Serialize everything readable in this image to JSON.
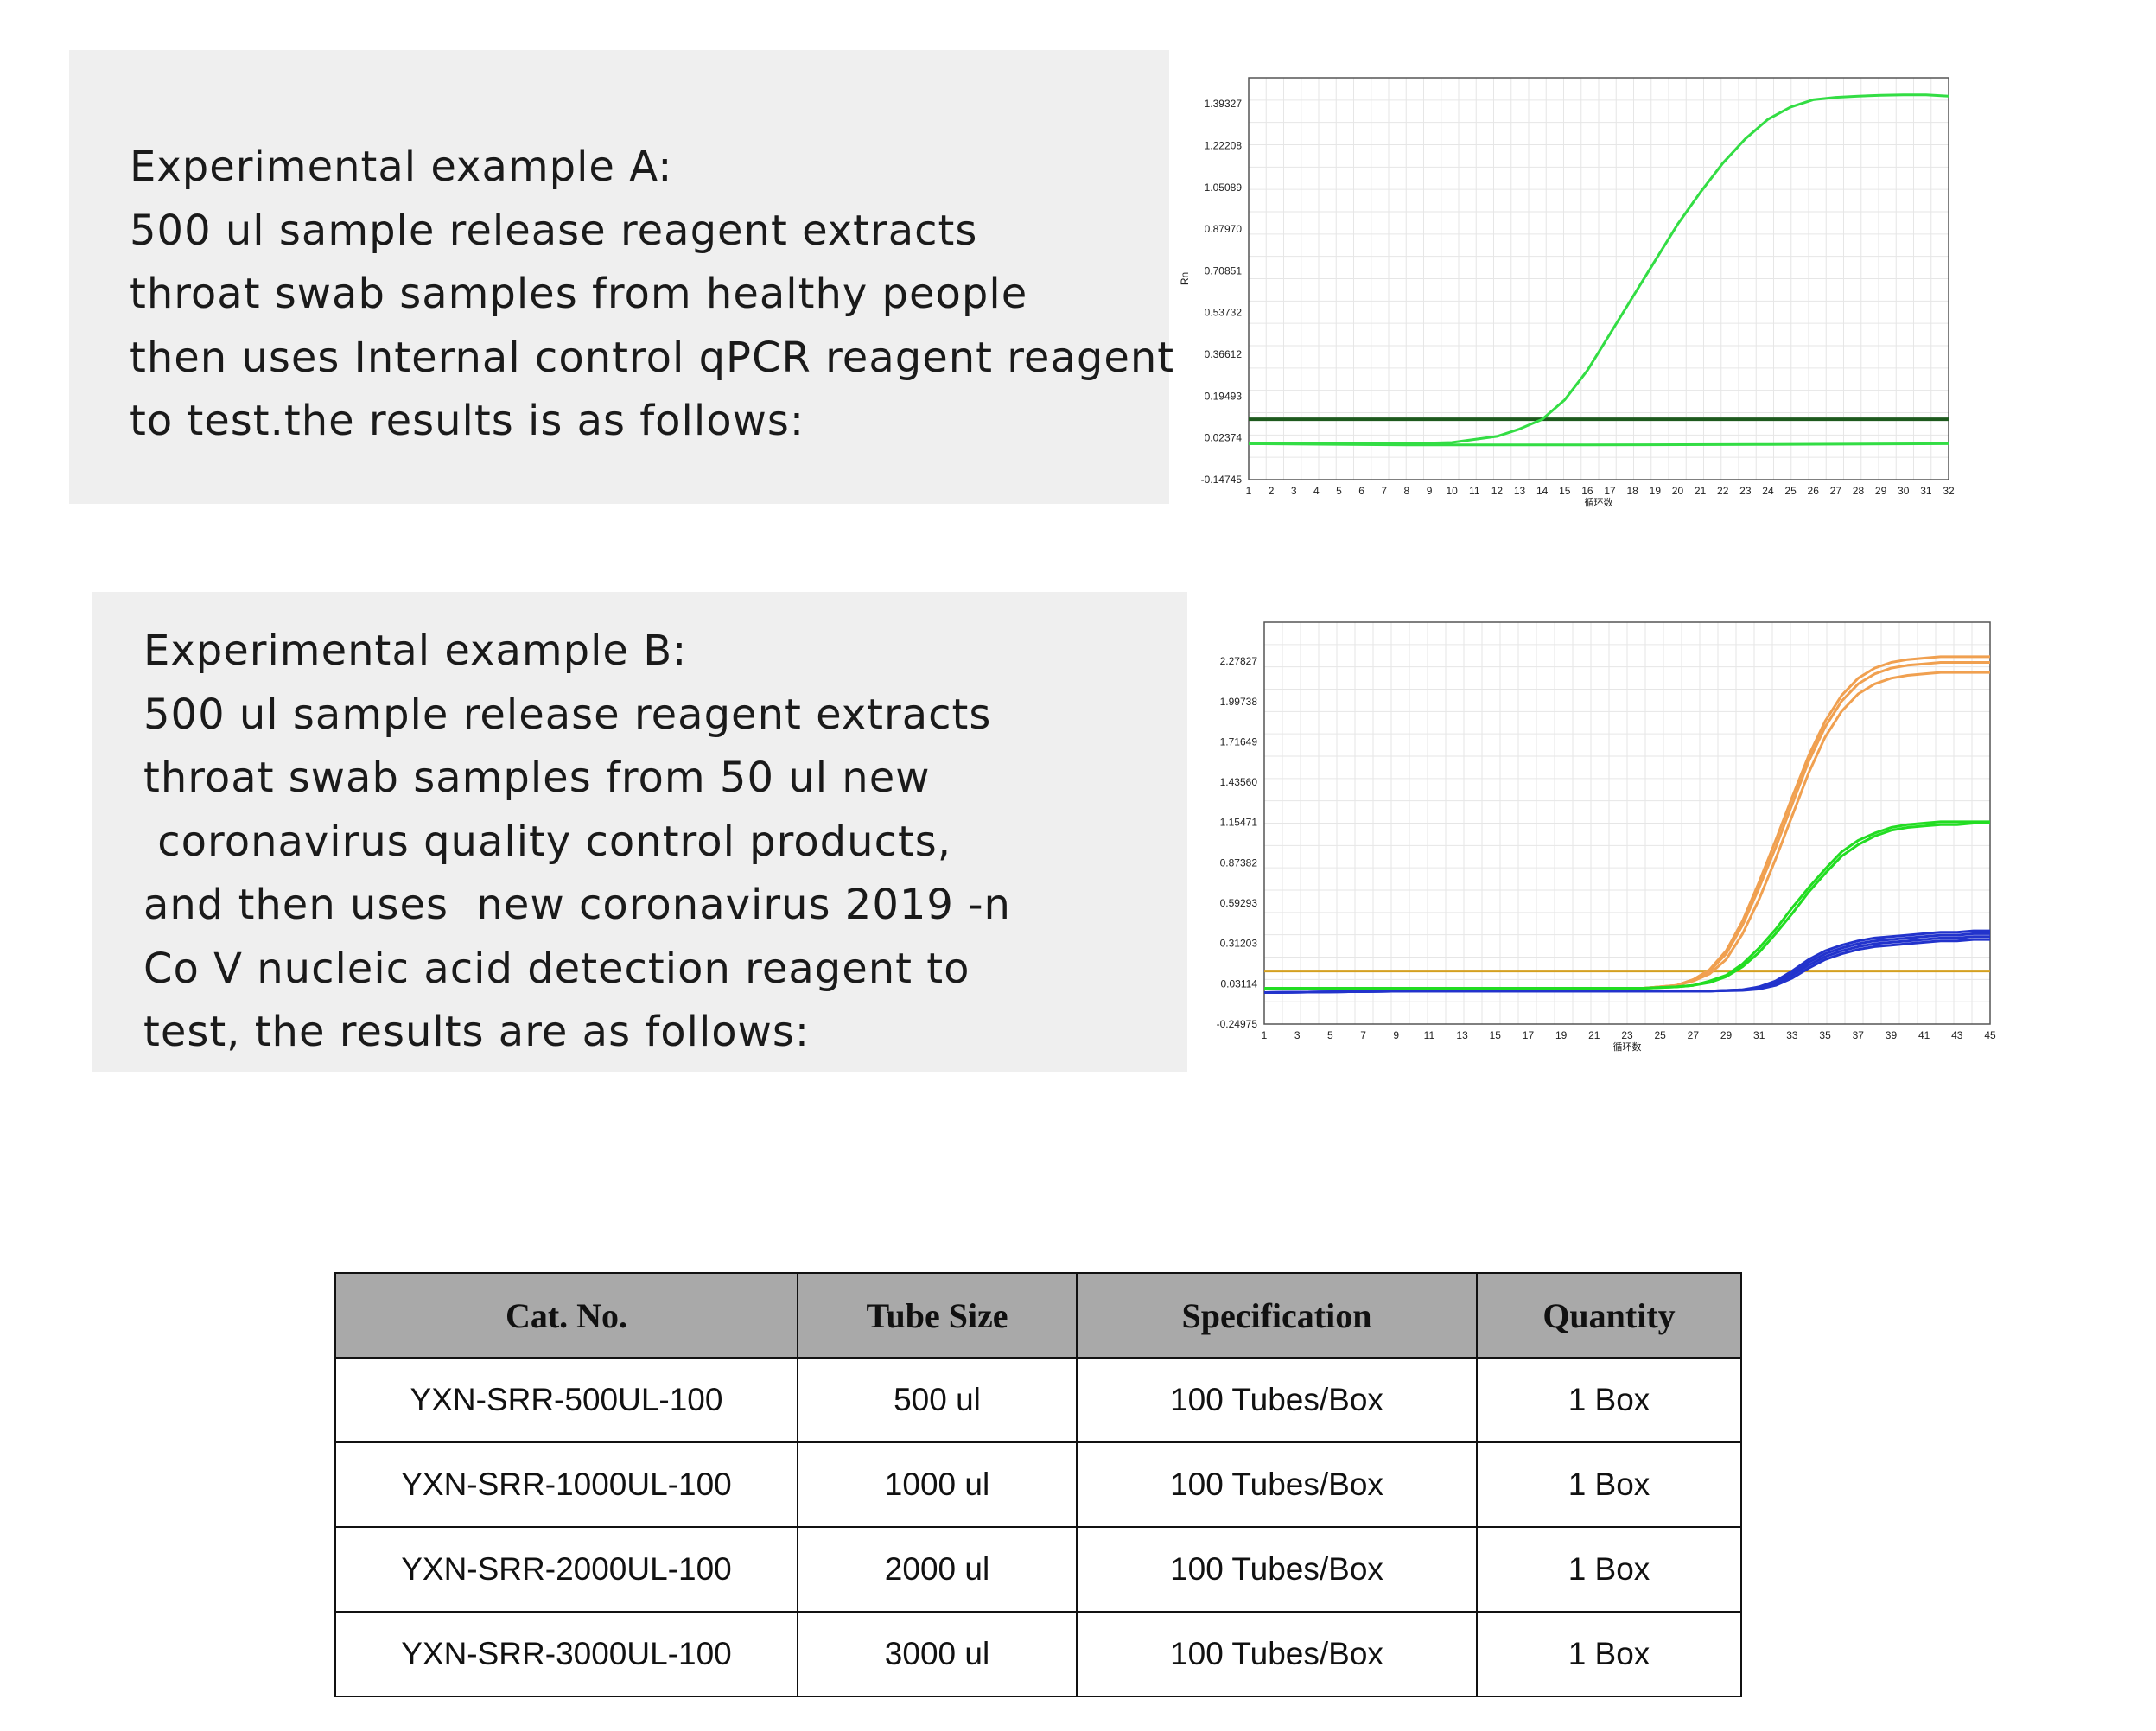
{
  "example_a": {
    "lines": [
      "Experimental example A:",
      "500 ul sample release reagent extracts",
      "throat swab samples from healthy people",
      "then uses Internal control qPCR reagent reagent",
      "to test.the results is as follows:"
    ]
  },
  "example_b": {
    "lines": [
      "Experimental example B:",
      "500 ul sample release reagent extracts",
      "throat swab samples from 50 ul new",
      " coronavirus quality control products,",
      "and then uses  new coronavirus 2019 -n",
      "Co V nucleic acid detection reagent to",
      "test, the results are as follows:"
    ]
  },
  "chart_data": [
    {
      "type": "line",
      "title": "",
      "ylabel": "Rn",
      "xlabel": "循环数",
      "y_ticks": [
        "1.39327",
        "1.22208",
        "1.05089",
        "0.87970",
        "0.70851",
        "0.53732",
        "0.36612",
        "0.19493",
        "0.02374",
        "-0.14745"
      ],
      "x_ticks": [
        "1",
        "2",
        "3",
        "4",
        "5",
        "6",
        "7",
        "8",
        "9",
        "10",
        "11",
        "12",
        "13",
        "14",
        "15",
        "16",
        "17",
        "18",
        "19",
        "20",
        "21",
        "22",
        "23",
        "24",
        "25",
        "26",
        "27",
        "28",
        "29",
        "30",
        "31",
        "32"
      ],
      "xlim": [
        1,
        32
      ],
      "ylim": [
        -0.14745,
        1.5
      ],
      "grid": true,
      "threshold": 0.1,
      "series": [
        {
          "color": "#33dd44",
          "x": [
            1,
            4,
            8,
            10,
            12,
            13,
            14,
            15,
            16,
            17,
            18,
            19,
            20,
            21,
            22,
            23,
            24,
            25,
            26,
            27,
            28,
            29,
            30,
            31,
            32
          ],
          "y": [
            0.0,
            0.0,
            0.0,
            0.005,
            0.03,
            0.06,
            0.1,
            0.18,
            0.3,
            0.45,
            0.6,
            0.75,
            0.9,
            1.03,
            1.15,
            1.25,
            1.33,
            1.38,
            1.41,
            1.42,
            1.425,
            1.428,
            1.43,
            1.43,
            1.425
          ]
        },
        {
          "color": "#33dd44",
          "x": [
            1,
            8,
            16,
            24,
            32
          ],
          "y": [
            0.0,
            -0.005,
            -0.005,
            -0.003,
            0.0
          ]
        }
      ]
    },
    {
      "type": "line",
      "title": "",
      "ylabel": "",
      "xlabel": "循环数",
      "y_ticks": [
        "2.27827",
        "1.99738",
        "1.71649",
        "1.43560",
        "1.15471",
        "0.87382",
        "0.59293",
        "0.31203",
        "0.03114",
        "-0.24975"
      ],
      "x_ticks": [
        "1",
        "3",
        "5",
        "7",
        "9",
        "11",
        "13",
        "15",
        "17",
        "19",
        "21",
        "23",
        "25",
        "27",
        "29",
        "31",
        "33",
        "35",
        "37",
        "39",
        "41",
        "43",
        "45"
      ],
      "xlim": [
        1,
        45
      ],
      "ylim": [
        -0.24975,
        2.55
      ],
      "grid": true,
      "threshold": 0.12,
      "series": [
        {
          "color": "#f0a050",
          "x": [
            1,
            10,
            20,
            24,
            26,
            27,
            28,
            29,
            30,
            31,
            32,
            33,
            34,
            35,
            36,
            37,
            38,
            39,
            40,
            41,
            42,
            43,
            44,
            45
          ],
          "y": [
            0.0,
            0.0,
            0.0,
            0.0,
            0.02,
            0.05,
            0.1,
            0.2,
            0.38,
            0.62,
            0.9,
            1.2,
            1.5,
            1.75,
            1.93,
            2.05,
            2.12,
            2.16,
            2.18,
            2.19,
            2.2,
            2.2,
            2.2,
            2.2
          ]
        },
        {
          "color": "#f0a050",
          "x": [
            1,
            10,
            20,
            24,
            26,
            27,
            28,
            29,
            30,
            31,
            32,
            33,
            34,
            35,
            36,
            37,
            38,
            39,
            40,
            41,
            42,
            43,
            44,
            45
          ],
          "y": [
            0.0,
            0.0,
            0.0,
            0.0,
            0.02,
            0.06,
            0.12,
            0.24,
            0.44,
            0.7,
            0.98,
            1.28,
            1.58,
            1.82,
            2.0,
            2.12,
            2.19,
            2.23,
            2.25,
            2.26,
            2.27,
            2.27,
            2.27,
            2.27
          ]
        },
        {
          "color": "#f0a050",
          "x": [
            1,
            10,
            20,
            24,
            26,
            27,
            28,
            29,
            30,
            31,
            32,
            33,
            34,
            35,
            36,
            37,
            38,
            39,
            40,
            41,
            42,
            43,
            44,
            45
          ],
          "y": [
            0.0,
            0.0,
            0.0,
            0.0,
            0.02,
            0.06,
            0.13,
            0.26,
            0.47,
            0.74,
            1.03,
            1.33,
            1.62,
            1.86,
            2.04,
            2.16,
            2.23,
            2.27,
            2.29,
            2.3,
            2.31,
            2.31,
            2.31,
            2.31
          ]
        },
        {
          "color": "#22dd22",
          "x": [
            1,
            10,
            20,
            24,
            26,
            27,
            28,
            29,
            30,
            31,
            32,
            33,
            34,
            35,
            36,
            37,
            38,
            39,
            40,
            41,
            42,
            43,
            44,
            45
          ],
          "y": [
            0.0,
            0.0,
            0.0,
            0.0,
            0.01,
            0.02,
            0.04,
            0.08,
            0.15,
            0.25,
            0.38,
            0.52,
            0.67,
            0.8,
            0.92,
            1.0,
            1.06,
            1.1,
            1.12,
            1.13,
            1.14,
            1.14,
            1.15,
            1.15
          ]
        },
        {
          "color": "#22dd22",
          "x": [
            1,
            10,
            20,
            24,
            26,
            27,
            28,
            29,
            30,
            31,
            32,
            33,
            34,
            35,
            36,
            37,
            38,
            39,
            40,
            41,
            42,
            43,
            44,
            45
          ],
          "y": [
            0.0,
            0.0,
            0.0,
            0.0,
            0.01,
            0.02,
            0.05,
            0.09,
            0.17,
            0.28,
            0.41,
            0.56,
            0.7,
            0.83,
            0.95,
            1.03,
            1.08,
            1.12,
            1.14,
            1.15,
            1.16,
            1.16,
            1.16,
            1.16
          ]
        },
        {
          "color": "#2233cc",
          "x": [
            1,
            10,
            20,
            28,
            30,
            31,
            32,
            33,
            34,
            35,
            36,
            37,
            38,
            39,
            40,
            41,
            42,
            43,
            44,
            45
          ],
          "y": [
            -0.03,
            -0.02,
            -0.02,
            -0.02,
            -0.015,
            -0.005,
            0.02,
            0.07,
            0.14,
            0.2,
            0.24,
            0.27,
            0.29,
            0.3,
            0.31,
            0.32,
            0.33,
            0.33,
            0.34,
            0.34
          ]
        },
        {
          "color": "#2233cc",
          "x": [
            1,
            10,
            20,
            28,
            30,
            31,
            32,
            33,
            34,
            35,
            36,
            37,
            38,
            39,
            40,
            41,
            42,
            43,
            44,
            45
          ],
          "y": [
            -0.03,
            -0.02,
            -0.02,
            -0.02,
            -0.012,
            0.0,
            0.03,
            0.09,
            0.16,
            0.22,
            0.26,
            0.29,
            0.31,
            0.32,
            0.33,
            0.34,
            0.35,
            0.35,
            0.36,
            0.36
          ]
        },
        {
          "color": "#2233cc",
          "x": [
            1,
            10,
            20,
            28,
            30,
            31,
            32,
            33,
            34,
            35,
            36,
            37,
            38,
            39,
            40,
            41,
            42,
            43,
            44,
            45
          ],
          "y": [
            -0.03,
            -0.02,
            -0.02,
            -0.02,
            -0.01,
            0.005,
            0.04,
            0.1,
            0.18,
            0.24,
            0.28,
            0.31,
            0.33,
            0.34,
            0.35,
            0.36,
            0.37,
            0.37,
            0.38,
            0.38
          ]
        },
        {
          "color": "#2233cc",
          "x": [
            1,
            10,
            20,
            28,
            30,
            31,
            32,
            33,
            34,
            35,
            36,
            37,
            38,
            39,
            40,
            41,
            42,
            43,
            44,
            45
          ],
          "y": [
            -0.03,
            -0.02,
            -0.02,
            -0.02,
            -0.01,
            0.01,
            0.05,
            0.12,
            0.2,
            0.26,
            0.3,
            0.33,
            0.35,
            0.36,
            0.37,
            0.38,
            0.39,
            0.39,
            0.4,
            0.4
          ]
        }
      ]
    }
  ],
  "table": {
    "headers": [
      "Cat. No.",
      "Tube Size",
      "Specification",
      "Quantity"
    ],
    "rows": [
      [
        "YXN-SRR-500UL-100",
        "500 ul",
        "100  Tubes/Box",
        "1 Box"
      ],
      [
        "YXN-SRR-1000UL-100",
        "1000 ul",
        "100  Tubes/Box",
        "1 Box"
      ],
      [
        "YXN-SRR-2000UL-100",
        "2000 ul",
        "100  Tubes/Box",
        "1 Box"
      ],
      [
        "YXN-SRR-3000UL-100",
        "3000 ul",
        "100  Tubes/Box",
        "1 Box"
      ]
    ]
  }
}
